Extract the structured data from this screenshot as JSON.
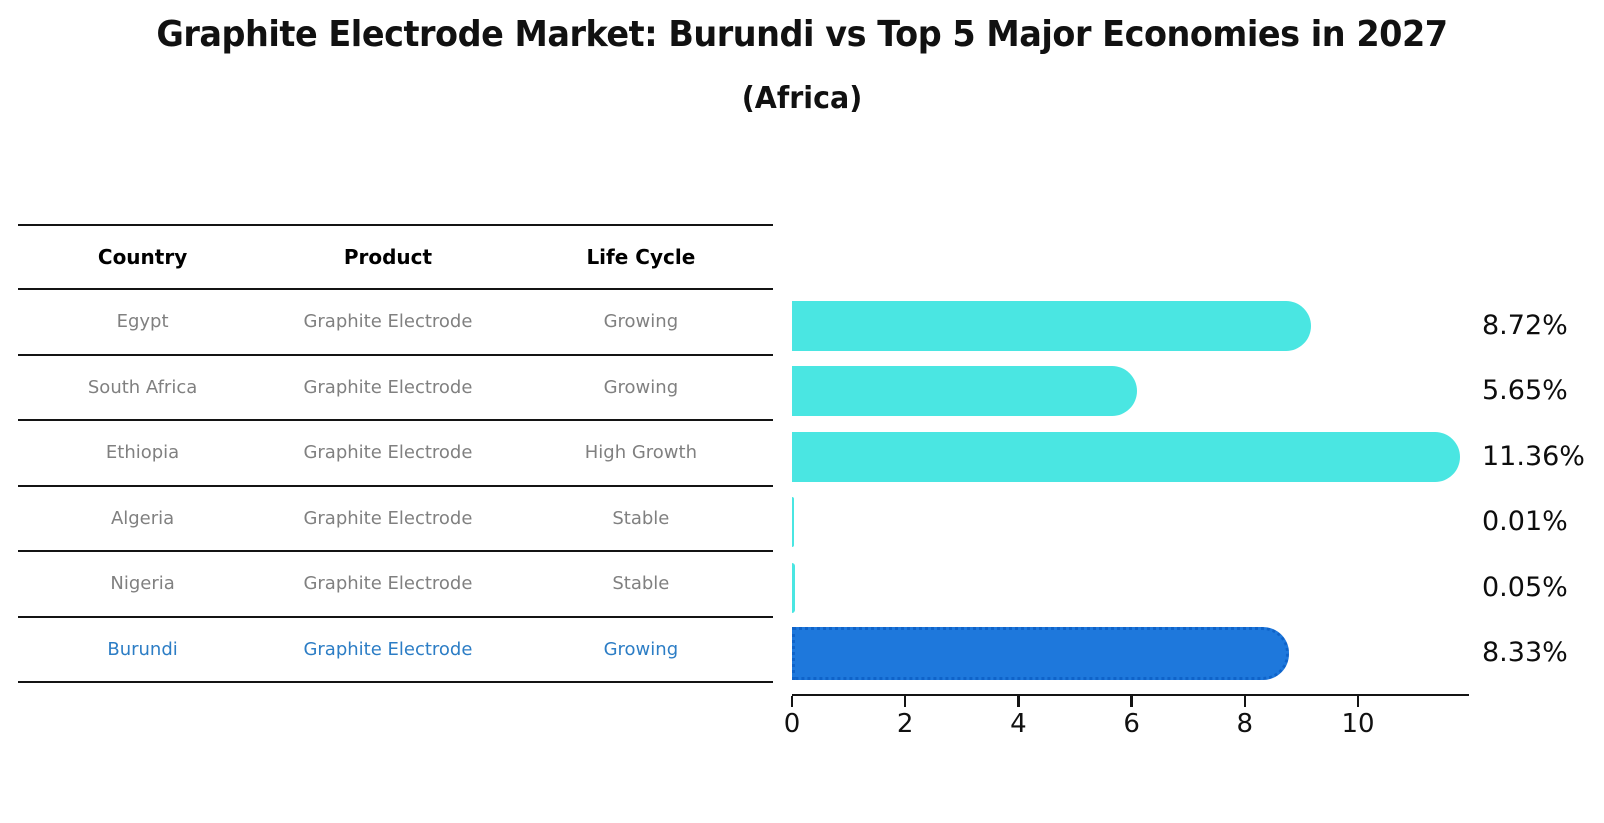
{
  "title": "Graphite Electrode Market: Burundi vs Top 5 Major Economies in 2027",
  "subtitle": "(Africa)",
  "table": {
    "headers": {
      "country": "Country",
      "product": "Product",
      "life_cycle": "Life Cycle"
    },
    "rows": [
      {
        "country": "Egypt",
        "product": "Graphite Electrode",
        "life_cycle": "Growing"
      },
      {
        "country": "South Africa",
        "product": "Graphite Electrode",
        "life_cycle": "Growing"
      },
      {
        "country": "Ethiopia",
        "product": "Graphite Electrode",
        "life_cycle": "High Growth"
      },
      {
        "country": "Algeria",
        "product": "Graphite Electrode",
        "life_cycle": "Stable"
      },
      {
        "country": "Nigeria",
        "product": "Graphite Electrode",
        "life_cycle": "Stable"
      },
      {
        "country": "Burundi",
        "product": "Graphite Electrode",
        "life_cycle": "Growing"
      }
    ],
    "highlight_row": 5
  },
  "chart_data": {
    "type": "bar",
    "orientation": "horizontal",
    "title": "Graphite Electrode Market: Burundi vs Top 5 Major Economies in 2027",
    "subtitle": "(Africa)",
    "categories": [
      "Egypt",
      "South Africa",
      "Ethiopia",
      "Algeria",
      "Nigeria",
      "Burundi"
    ],
    "values": [
      8.72,
      5.65,
      11.36,
      0.01,
      0.05,
      8.33
    ],
    "value_labels": [
      "8.72%",
      "5.65%",
      "11.36%",
      "0.01%",
      "0.05%",
      "8.33%"
    ],
    "unit": "%",
    "xticks": [
      "0",
      "2",
      "4",
      "6",
      "8",
      "10"
    ],
    "xtick_values": [
      0,
      2,
      4,
      6,
      8,
      10
    ],
    "xlim": [
      0,
      11.96
    ],
    "grid": false,
    "legend": false,
    "bar_color": "#4ae6e2",
    "highlight_bar_color": "#1e78dc",
    "highlight_index": 5
  },
  "colors": {
    "background": "#ffffff",
    "title_text": "#111111",
    "table_line": "#141414",
    "table_header_text": "#000000",
    "table_body_text": "#808080",
    "highlight_text": "#2c7dc5",
    "bar_cyan": "#4ae6e2",
    "bar_blue": "#1e78dc",
    "axis": "#141414"
  }
}
